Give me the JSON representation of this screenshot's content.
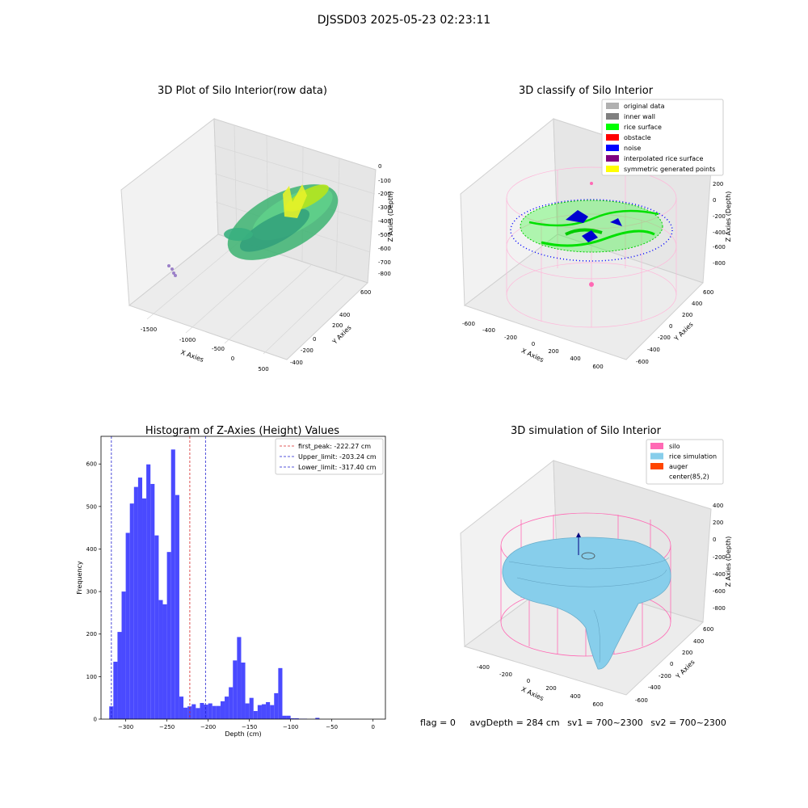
{
  "figure_title": "DJSSD03 2025-05-23 02:23:11",
  "colors": {
    "hist_bar": "#4a4aff",
    "first_peak_line": "#d62728",
    "limit_line": "#1f1fd0",
    "silo": "#ff69b4",
    "rice_simulation": "#87ceeb",
    "auger": "#ff4500",
    "original_data": "#b0b0b0",
    "inner_wall": "#808080",
    "rice_surface": "#00ff00",
    "obstacle": "#ff0000",
    "noise": "#0000ff",
    "interpolated_rice_surface": "#800080",
    "symmetric_generated_points": "#ffff00"
  },
  "panels": {
    "p1": {
      "title": "3D Plot of Silo Interior(row data)",
      "xlabel": "X Axies",
      "ylabel": "Y Axies",
      "zlabel": "Z Axies (Depth)",
      "xticks": [
        "-1500",
        "-1000",
        "-500",
        "0",
        "500"
      ],
      "yticks": [
        "600",
        "400",
        "200",
        "0",
        "-200",
        "-400",
        "-600"
      ],
      "zticks": [
        "0",
        "-100",
        "-200",
        "-300",
        "-400",
        "-500",
        "-600",
        "-700",
        "-800"
      ]
    },
    "p2": {
      "title": "3D classify of Silo Interior",
      "xlabel": "X Axies",
      "ylabel": "Y Axies",
      "zlabel": "Z Axies (Depth)",
      "xticks": [
        "-600",
        "-400",
        "-200",
        "0",
        "200",
        "400",
        "600"
      ],
      "yticks": [
        "600",
        "400",
        "200",
        "0",
        "-200",
        "-400",
        "-600"
      ],
      "zticks": [
        "200",
        "0",
        "-200",
        "-400",
        "-600",
        "-800"
      ],
      "legend": [
        {
          "label": "original data",
          "color": "#b0b0b0"
        },
        {
          "label": "inner wall",
          "color": "#808080"
        },
        {
          "label": "rice surface",
          "color": "#00ff00"
        },
        {
          "label": "obstacle",
          "color": "#ff0000"
        },
        {
          "label": "noise",
          "color": "#0000ff"
        },
        {
          "label": "interpolated rice surface",
          "color": "#800080"
        },
        {
          "label": "symmetric generated points",
          "color": "#ffff00"
        }
      ]
    },
    "p4": {
      "title": "3D simulation of Silo Interior",
      "xlabel": "X Axies",
      "ylabel": "Y Axies",
      "zlabel": "Z Axies (Depth)",
      "xticks": [
        "-400",
        "-200",
        "0",
        "200",
        "400",
        "600"
      ],
      "yticks": [
        "600",
        "400",
        "200",
        "0",
        "-200",
        "-400",
        "-600"
      ],
      "zticks": [
        "400",
        "200",
        "0",
        "-200",
        "-400",
        "-600",
        "-800"
      ],
      "legend": [
        {
          "label": "silo",
          "color": "#ff69b4"
        },
        {
          "label": "rice simulation",
          "color": "#87ceeb"
        },
        {
          "label": "auger",
          "color": "#ff4500"
        },
        {
          "label": "center(85,2)",
          "color": ""
        }
      ]
    }
  },
  "footer": {
    "flag": "flag = 0",
    "avg": "avgDepth = 284 cm",
    "sv1": "sv1 = 700~2300",
    "sv2": "sv2 = 700~2300"
  },
  "chart_data": {
    "type": "bar",
    "title": "Histogram of Z-Axies (Height) Values",
    "xlabel": "Depth (cm)",
    "ylabel": "Frequency",
    "xlim": [
      -330,
      15
    ],
    "ylim": [
      0,
      665
    ],
    "xticks": [
      -300,
      -250,
      -200,
      -150,
      -100,
      -50,
      0
    ],
    "yticks": [
      0,
      100,
      200,
      300,
      400,
      500,
      600
    ],
    "bin_width": 5,
    "bins": [
      [
        -320,
        30
      ],
      [
        -315,
        135
      ],
      [
        -310,
        205
      ],
      [
        -305,
        300
      ],
      [
        -300,
        438
      ],
      [
        -295,
        507
      ],
      [
        -290,
        546
      ],
      [
        -285,
        568
      ],
      [
        -280,
        519
      ],
      [
        -275,
        599
      ],
      [
        -270,
        553
      ],
      [
        -265,
        432
      ],
      [
        -260,
        280
      ],
      [
        -255,
        270
      ],
      [
        -250,
        393
      ],
      [
        -245,
        634
      ],
      [
        -240,
        527
      ],
      [
        -235,
        53
      ],
      [
        -230,
        27
      ],
      [
        -225,
        30
      ],
      [
        -220,
        35
      ],
      [
        -215,
        26
      ],
      [
        -210,
        38
      ],
      [
        -205,
        34
      ],
      [
        -200,
        37
      ],
      [
        -195,
        31
      ],
      [
        -190,
        31
      ],
      [
        -185,
        42
      ],
      [
        -180,
        53
      ],
      [
        -175,
        75
      ],
      [
        -170,
        138
      ],
      [
        -165,
        193
      ],
      [
        -160,
        133
      ],
      [
        -155,
        37
      ],
      [
        -150,
        50
      ],
      [
        -145,
        19
      ],
      [
        -140,
        33
      ],
      [
        -135,
        35
      ],
      [
        -130,
        40
      ],
      [
        -125,
        33
      ],
      [
        -120,
        61
      ],
      [
        -115,
        120
      ],
      [
        -110,
        8
      ],
      [
        -105,
        8
      ],
      [
        -100,
        2
      ],
      [
        -95,
        2
      ],
      [
        -90,
        1
      ],
      [
        -85,
        1
      ],
      [
        -80,
        0
      ],
      [
        -75,
        0
      ],
      [
        -70,
        3
      ],
      [
        -65,
        0
      ],
      [
        -60,
        0
      ]
    ],
    "vlines": [
      {
        "name": "first_peak: -222.27 cm",
        "x": -222.27,
        "color": "#d62728"
      },
      {
        "name": "Upper_limit: -203.24 cm",
        "x": -203.24,
        "color": "#1f1fd0"
      },
      {
        "name": "Lower_limit: -317.40 cm",
        "x": -317.4,
        "color": "#1f1fd0"
      }
    ]
  }
}
